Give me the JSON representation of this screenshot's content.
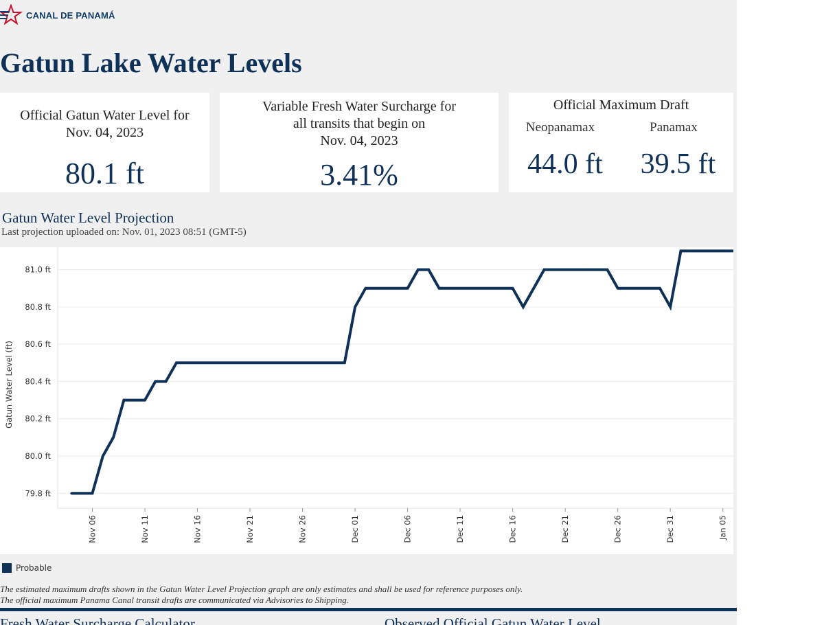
{
  "brand": {
    "logo_text": "CANAL DE PANAMÁ"
  },
  "page_title": "Gatun Lake Water Levels",
  "cards": {
    "water_level": {
      "label_line1": "Official Gatun Water Level for",
      "label_line2": "Nov. 04, 2023",
      "value": "80.1 ft"
    },
    "surcharge": {
      "label_line1": "Variable Fresh Water Surcharge for",
      "label_line2": "all transits that begin on",
      "label_line3": "Nov. 04, 2023",
      "value": "3.41%"
    },
    "draft": {
      "title": "Official Maximum Draft",
      "neopanamax_label": "Neopanamax",
      "panamax_label": "Panamax",
      "neopanamax_value": "44.0 ft",
      "panamax_value": "39.5 ft"
    }
  },
  "projection": {
    "title": "Gatun Water Level Projection",
    "subtitle": "Last projection uploaded on: Nov. 01, 2023 08:51 (GMT-5)"
  },
  "chart_data": {
    "type": "line",
    "title": "Gatun Water Level Projection",
    "xlabel": "",
    "ylabel": "Gatun Water Level (ft)",
    "ylim": [
      79.72,
      81.12
    ],
    "y_ticks": [
      79.8,
      80.0,
      80.2,
      80.4,
      80.6,
      80.8,
      81.0
    ],
    "y_tick_labels": [
      "79.8 ft",
      "80.0 ft",
      "80.2 ft",
      "80.4 ft",
      "80.6 ft",
      "80.8 ft",
      "81.0 ft"
    ],
    "x_start": "Nov 04",
    "x_range_days": [
      -1.3,
      63
    ],
    "x_tick_days": [
      2,
      7,
      12,
      17,
      22,
      27,
      32,
      37,
      42,
      47,
      52,
      57,
      62
    ],
    "x_tick_labels": [
      "Nov 06",
      "Nov 11",
      "Nov 16",
      "Nov 21",
      "Nov 26",
      "Dec 01",
      "Dec 06",
      "Dec 11",
      "Dec 16",
      "Dec 21",
      "Dec 26",
      "Dec 31",
      "Jan 05"
    ],
    "series": [
      {
        "name": "Probable",
        "color": "#0f3057",
        "points": [
          [
            0,
            79.8
          ],
          [
            2,
            79.8
          ],
          [
            3,
            80.0
          ],
          [
            4,
            80.1
          ],
          [
            5,
            80.3
          ],
          [
            7,
            80.3
          ],
          [
            8,
            80.4
          ],
          [
            9,
            80.4
          ],
          [
            10,
            80.5
          ],
          [
            15,
            80.5
          ],
          [
            20,
            80.5
          ],
          [
            26,
            80.5
          ],
          [
            27,
            80.8
          ],
          [
            28,
            80.9
          ],
          [
            32,
            80.9
          ],
          [
            33,
            81.0
          ],
          [
            34,
            81.0
          ],
          [
            35,
            80.9
          ],
          [
            40,
            80.9
          ],
          [
            42,
            80.9
          ],
          [
            43,
            80.8
          ],
          [
            45,
            81.0
          ],
          [
            49,
            81.0
          ],
          [
            51,
            81.0
          ],
          [
            52,
            80.9
          ],
          [
            56,
            80.9
          ],
          [
            57,
            80.8
          ],
          [
            58,
            81.1
          ],
          [
            62,
            81.1
          ],
          [
            67,
            81.1
          ]
        ]
      }
    ],
    "legend": [
      "Probable"
    ]
  },
  "disclaimer": {
    "line1": "The estimated maximum drafts shown in the Gatun Water Level Projection graph are only estimates and shall be used for reference purposes only.",
    "line2": "The official maximum Panama Canal transit drafts are communicated via Advisories to Shipping."
  },
  "bottom": {
    "left_title": "Fresh Water Surcharge Calculator",
    "right_title": "Observed Official Gatun Water Level"
  }
}
